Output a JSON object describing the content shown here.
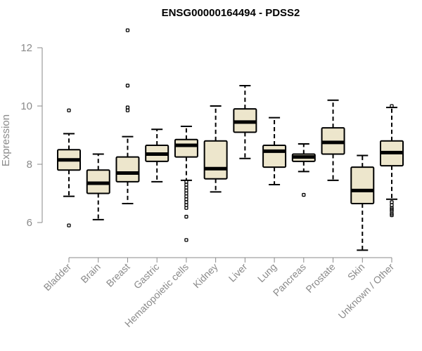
{
  "chart_data": {
    "type": "box",
    "title": "ENSG00000164494 - PDSS2",
    "xlabel": "",
    "ylabel": "Expression",
    "ylim": [
      4.9,
      12.9
    ],
    "yticks": [
      6,
      8,
      10,
      12
    ],
    "colors": {
      "box_fill": "#ede6cc",
      "stroke": "#000000",
      "axis": "#8a8a8a",
      "label": "#8a8a8a"
    },
    "categories": [
      "Bladder",
      "Brain",
      "Breast",
      "Gastric",
      "Hematopoietic cells",
      "Kidney",
      "Liver",
      "Lung",
      "Pancreas",
      "Prostate",
      "Skin",
      "Unknown / Other"
    ],
    "boxes": [
      {
        "category": "Bladder",
        "whisker_low": 6.9,
        "q1": 7.8,
        "median": 8.15,
        "q3": 8.5,
        "whisker_high": 9.05,
        "outliers": [
          9.85,
          5.9
        ]
      },
      {
        "category": "Brain",
        "whisker_low": 6.1,
        "q1": 7.0,
        "median": 7.35,
        "q3": 7.8,
        "whisker_high": 8.35,
        "outliers": []
      },
      {
        "category": "Breast",
        "whisker_low": 6.65,
        "q1": 7.4,
        "median": 7.7,
        "q3": 8.25,
        "whisker_high": 8.95,
        "outliers": [
          12.6,
          10.7,
          9.95,
          9.85
        ]
      },
      {
        "category": "Gastric",
        "whisker_low": 7.4,
        "q1": 8.1,
        "median": 8.35,
        "q3": 8.65,
        "whisker_high": 9.2,
        "outliers": []
      },
      {
        "category": "Hematopoietic cells",
        "whisker_low": 7.45,
        "q1": 8.25,
        "median": 8.65,
        "q3": 8.85,
        "whisker_high": 9.3,
        "outliers": [
          7.4,
          7.3,
          7.2,
          7.1,
          7.0,
          6.9,
          6.8,
          6.7,
          6.6,
          6.5,
          6.2,
          5.4
        ]
      },
      {
        "category": "Kidney",
        "whisker_low": 7.05,
        "q1": 7.5,
        "median": 7.85,
        "q3": 8.8,
        "whisker_high": 10.0,
        "outliers": []
      },
      {
        "category": "Liver",
        "whisker_low": 8.2,
        "q1": 9.1,
        "median": 9.45,
        "q3": 9.9,
        "whisker_high": 10.7,
        "outliers": []
      },
      {
        "category": "Lung",
        "whisker_low": 7.3,
        "q1": 7.9,
        "median": 8.45,
        "q3": 8.65,
        "whisker_high": 9.6,
        "outliers": []
      },
      {
        "category": "Pancreas",
        "whisker_low": 7.75,
        "q1": 8.1,
        "median": 8.25,
        "q3": 8.35,
        "whisker_high": 8.7,
        "outliers": [
          6.95
        ]
      },
      {
        "category": "Prostate",
        "whisker_low": 7.45,
        "q1": 8.35,
        "median": 8.75,
        "q3": 9.25,
        "whisker_high": 10.2,
        "outliers": []
      },
      {
        "category": "Skin",
        "whisker_low": 5.05,
        "q1": 6.65,
        "median": 7.1,
        "q3": 7.9,
        "whisker_high": 8.3,
        "outliers": []
      },
      {
        "category": "Unknown / Other",
        "whisker_low": 6.8,
        "q1": 7.95,
        "median": 8.4,
        "q3": 8.8,
        "whisker_high": 9.95,
        "outliers": [
          10.0,
          6.7,
          6.6,
          6.5,
          6.45,
          6.4,
          6.3,
          6.25
        ]
      }
    ]
  }
}
